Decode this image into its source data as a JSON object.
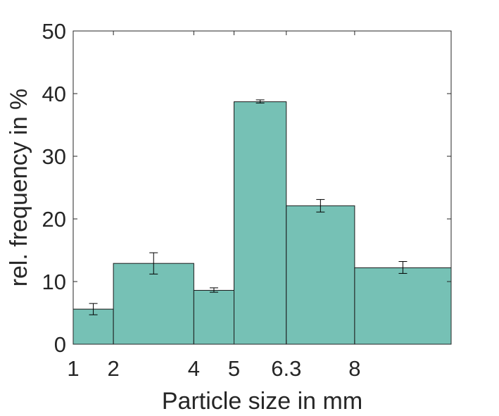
{
  "chart_data": {
    "type": "bar",
    "title": "",
    "xlabel": "Particle size in mm",
    "ylabel": "rel. frequency in %",
    "ylim": [
      0,
      50
    ],
    "xlim": [
      1,
      10.4
    ],
    "yticks": [
      0,
      10,
      20,
      30,
      40,
      50
    ],
    "xticks": [
      {
        "value": 1,
        "label": "1"
      },
      {
        "value": 2,
        "label": "2"
      },
      {
        "value": 4,
        "label": "4"
      },
      {
        "value": 5,
        "label": "5"
      },
      {
        "value": 6.3,
        "label": "6.3"
      },
      {
        "value": 8,
        "label": "8"
      }
    ],
    "bins": [
      {
        "from": 1,
        "to": 2,
        "value": 5.6,
        "err_low": 4.7,
        "err_high": 6.5
      },
      {
        "from": 2,
        "to": 4,
        "value": 12.9,
        "err_low": 11.2,
        "err_high": 14.6
      },
      {
        "from": 4,
        "to": 5,
        "value": 8.6,
        "err_low": 8.3,
        "err_high": 9.0
      },
      {
        "from": 5,
        "to": 6.3,
        "value": 38.7,
        "err_low": 38.5,
        "err_high": 39.0
      },
      {
        "from": 6.3,
        "to": 8,
        "value": 22.1,
        "err_low": 21.1,
        "err_high": 23.1
      },
      {
        "from": 8,
        "to": 10.4,
        "value": 12.2,
        "err_low": 11.3,
        "err_high": 13.2
      }
    ],
    "bar_color": "#76c1b5",
    "grid": false,
    "legend": "none"
  }
}
